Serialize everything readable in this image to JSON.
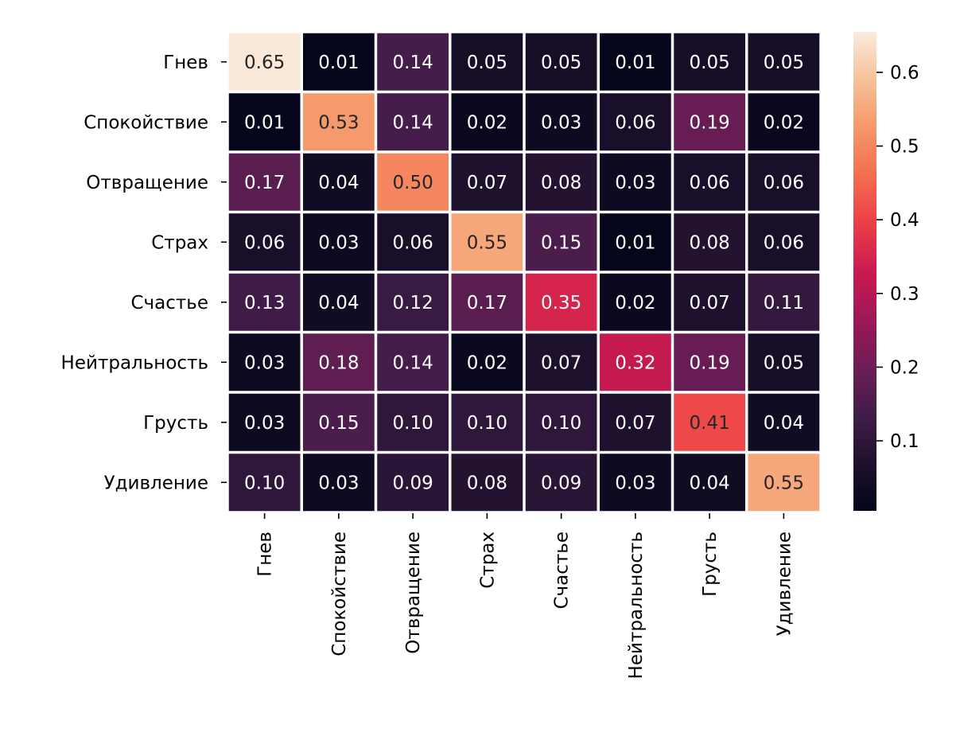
{
  "chart_data": {
    "type": "heatmap",
    "row_labels": [
      "Гнев",
      "Спокойствие",
      "Отвращение",
      "Страх",
      "Счастье",
      "Нейтральность",
      "Грусть",
      "Удивление"
    ],
    "col_labels": [
      "Гнев",
      "Спокойствие",
      "Отвращение",
      "Страх",
      "Счастье",
      "Нейтральность",
      "Грусть",
      "Удивление"
    ],
    "values": [
      [
        0.65,
        0.01,
        0.14,
        0.05,
        0.05,
        0.01,
        0.05,
        0.05
      ],
      [
        0.01,
        0.53,
        0.14,
        0.02,
        0.03,
        0.06,
        0.19,
        0.02
      ],
      [
        0.17,
        0.04,
        0.5,
        0.07,
        0.08,
        0.03,
        0.06,
        0.06
      ],
      [
        0.06,
        0.03,
        0.06,
        0.55,
        0.15,
        0.01,
        0.08,
        0.06
      ],
      [
        0.13,
        0.04,
        0.12,
        0.17,
        0.35,
        0.02,
        0.07,
        0.11
      ],
      [
        0.03,
        0.18,
        0.14,
        0.02,
        0.07,
        0.32,
        0.19,
        0.05
      ],
      [
        0.03,
        0.15,
        0.1,
        0.1,
        0.1,
        0.07,
        0.41,
        0.04
      ],
      [
        0.1,
        0.03,
        0.09,
        0.08,
        0.09,
        0.03,
        0.04,
        0.55
      ]
    ],
    "value_format": "0.00",
    "colormap": "rocket",
    "colorbar": {
      "min": 0.005,
      "max": 0.655,
      "ticks": [
        0.1,
        0.2,
        0.3,
        0.4,
        0.5,
        0.6
      ],
      "tick_labels": [
        "0.1",
        "0.2",
        "0.3",
        "0.4",
        "0.5",
        "0.6"
      ]
    },
    "title": "",
    "xlabel": "",
    "ylabel": "",
    "grid": false,
    "cell_separator_color": "#ffffff"
  }
}
